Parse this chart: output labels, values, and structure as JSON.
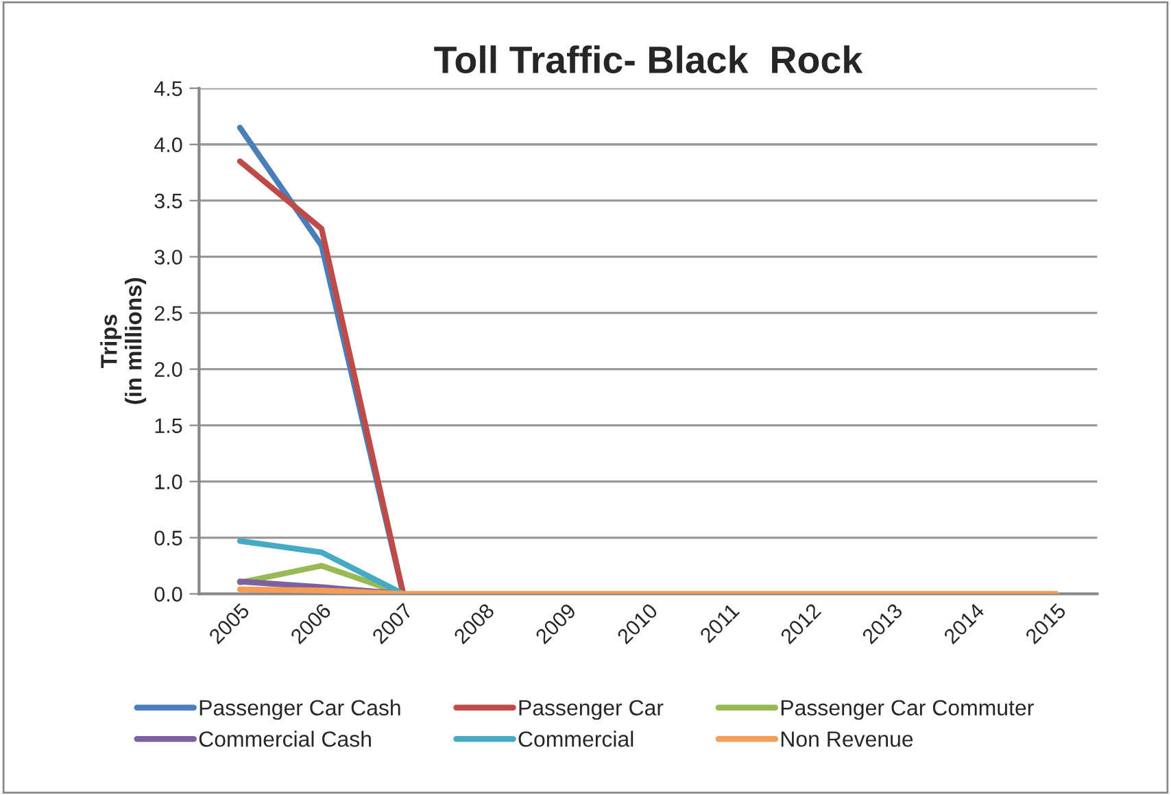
{
  "chart_data": {
    "type": "line",
    "title": "Toll Traffic- Black  Rock",
    "ylabel": "Trips\n(in millions)",
    "categories": [
      "2005",
      "2006",
      "2007",
      "2008",
      "2009",
      "2010",
      "2011",
      "2012",
      "2013",
      "2014",
      "2015"
    ],
    "series": [
      {
        "name": "Passenger Car Cash",
        "color": "#4a7ebb",
        "values": [
          4.15,
          3.1,
          0,
          null,
          null,
          null,
          null,
          null,
          null,
          null,
          null
        ]
      },
      {
        "name": "Passenger Car",
        "color": "#be4b48",
        "values": [
          3.85,
          3.25,
          0,
          null,
          null,
          null,
          null,
          null,
          null,
          null,
          null
        ]
      },
      {
        "name": "Passenger Car Commuter",
        "color": "#98b954",
        "values": [
          0.1,
          0.25,
          0,
          null,
          null,
          null,
          null,
          null,
          null,
          null,
          null
        ]
      },
      {
        "name": "Commercial Cash",
        "color": "#7d60a0",
        "values": [
          0.11,
          0.06,
          0,
          null,
          null,
          null,
          null,
          null,
          null,
          null,
          null
        ]
      },
      {
        "name": "Commercial",
        "color": "#46aac5",
        "values": [
          0.47,
          0.37,
          0,
          null,
          null,
          null,
          null,
          null,
          null,
          null,
          null
        ]
      },
      {
        "name": "Non Revenue",
        "color": "#f59d56",
        "values": [
          0.04,
          0.03,
          0,
          0,
          0,
          0,
          0,
          0,
          0,
          0,
          0
        ]
      }
    ],
    "ylim": [
      0,
      4.5
    ],
    "yticks": [
      {
        "value": 0,
        "label": "0.0"
      },
      {
        "value": 0.5,
        "label": "0.5"
      },
      {
        "value": 1,
        "label": "1.0"
      },
      {
        "value": 1.5,
        "label": "1.5"
      },
      {
        "value": 2,
        "label": "2.0"
      },
      {
        "value": 2.5,
        "label": "2.5"
      },
      {
        "value": 3,
        "label": "3.0"
      },
      {
        "value": 3.5,
        "label": "3.5"
      },
      {
        "value": 4,
        "label": "4.0"
      },
      {
        "value": 4.5,
        "label": "4.5"
      }
    ],
    "grid": "y",
    "legend": "bottom",
    "marker": "none",
    "line_style": "solid"
  }
}
